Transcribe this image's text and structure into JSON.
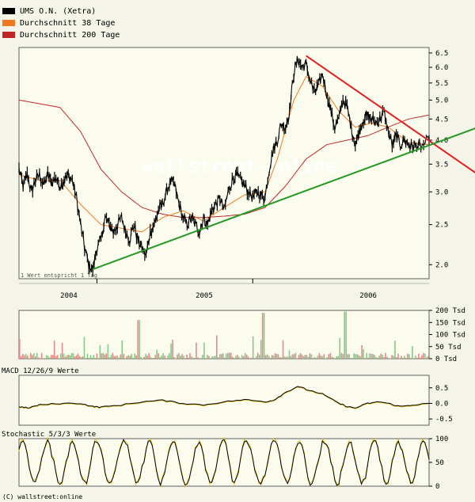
{
  "legend": [
    {
      "label": "UMS O.N. (Xetra)",
      "color": "#000000"
    },
    {
      "label": "Durchschnitt 38 Tage",
      "color": "#f07820"
    },
    {
      "label": "Durchschnitt 200 Tage",
      "color": "#c02828"
    }
  ],
  "footer": "(C) wallstreet:online",
  "watermark": "wallstreet-online",
  "chart_data": [
    {
      "type": "line",
      "name": "price",
      "x_labels": [
        "2004",
        "2005",
        "2006"
      ],
      "y_ticks": [
        6.5,
        6.0,
        5.5,
        5.0,
        4.5,
        4.0,
        3.5,
        3.0,
        2.5,
        2.0
      ],
      "ylim": [
        1.85,
        6.7
      ],
      "scale": "log",
      "note": "1 Wert entspricht 1 Tag",
      "price_path": [
        [
          0,
          3.4
        ],
        [
          0.01,
          3.1
        ],
        [
          0.02,
          3.3
        ],
        [
          0.03,
          3.0
        ],
        [
          0.04,
          3.2
        ],
        [
          0.05,
          3.3
        ],
        [
          0.06,
          3.1
        ],
        [
          0.07,
          3.3
        ],
        [
          0.08,
          3.15
        ],
        [
          0.09,
          3.25
        ],
        [
          0.1,
          3.1
        ],
        [
          0.11,
          3.2
        ],
        [
          0.12,
          3.3
        ],
        [
          0.13,
          3.2
        ],
        [
          0.14,
          2.9
        ],
        [
          0.15,
          2.5
        ],
        [
          0.16,
          2.2
        ],
        [
          0.17,
          2.0
        ],
        [
          0.18,
          1.95
        ],
        [
          0.19,
          2.2
        ],
        [
          0.2,
          2.3
        ],
        [
          0.21,
          2.6
        ],
        [
          0.22,
          2.5
        ],
        [
          0.23,
          2.4
        ],
        [
          0.24,
          2.5
        ],
        [
          0.25,
          2.6
        ],
        [
          0.26,
          2.4
        ],
        [
          0.27,
          2.3
        ],
        [
          0.28,
          2.5
        ],
        [
          0.29,
          2.3
        ],
        [
          0.3,
          2.2
        ],
        [
          0.31,
          2.1
        ],
        [
          0.32,
          2.4
        ],
        [
          0.33,
          2.5
        ],
        [
          0.34,
          2.7
        ],
        [
          0.35,
          2.8
        ],
        [
          0.36,
          3.0
        ],
        [
          0.37,
          3.2
        ],
        [
          0.38,
          3.1
        ],
        [
          0.39,
          2.8
        ],
        [
          0.4,
          2.6
        ],
        [
          0.41,
          2.5
        ],
        [
          0.42,
          2.6
        ],
        [
          0.43,
          2.5
        ],
        [
          0.44,
          2.4
        ],
        [
          0.45,
          2.6
        ],
        [
          0.46,
          2.5
        ],
        [
          0.47,
          2.7
        ],
        [
          0.48,
          2.8
        ],
        [
          0.49,
          2.9
        ],
        [
          0.5,
          2.7
        ],
        [
          0.51,
          3.0
        ],
        [
          0.52,
          3.2
        ],
        [
          0.53,
          3.3
        ],
        [
          0.54,
          3.2
        ],
        [
          0.55,
          3.1
        ],
        [
          0.56,
          3.0
        ],
        [
          0.57,
          2.9
        ],
        [
          0.58,
          3.0
        ],
        [
          0.59,
          2.95
        ],
        [
          0.6,
          2.9
        ],
        [
          0.61,
          3.4
        ],
        [
          0.62,
          3.8
        ],
        [
          0.63,
          4.0
        ],
        [
          0.64,
          4.4
        ],
        [
          0.65,
          4.3
        ],
        [
          0.66,
          4.7
        ],
        [
          0.67,
          5.8
        ],
        [
          0.68,
          6.3
        ],
        [
          0.69,
          6.0
        ],
        [
          0.7,
          6.1
        ],
        [
          0.71,
          5.6
        ],
        [
          0.72,
          5.2
        ],
        [
          0.73,
          5.4
        ],
        [
          0.74,
          5.8
        ],
        [
          0.75,
          5.2
        ],
        [
          0.76,
          4.7
        ],
        [
          0.77,
          4.3
        ],
        [
          0.78,
          4.5
        ],
        [
          0.79,
          5.0
        ],
        [
          0.8,
          4.8
        ],
        [
          0.81,
          4.3
        ],
        [
          0.82,
          3.9
        ],
        [
          0.83,
          4.2
        ],
        [
          0.84,
          4.5
        ],
        [
          0.85,
          4.6
        ],
        [
          0.86,
          4.5
        ],
        [
          0.87,
          4.4
        ],
        [
          0.88,
          4.5
        ],
        [
          0.89,
          4.7
        ],
        [
          0.9,
          4.2
        ],
        [
          0.91,
          3.9
        ],
        [
          0.92,
          4.1
        ],
        [
          0.93,
          3.9
        ],
        [
          0.94,
          4.0
        ],
        [
          0.95,
          3.9
        ],
        [
          0.96,
          3.85
        ],
        [
          0.97,
          3.9
        ],
        [
          0.98,
          3.85
        ],
        [
          1.0,
          4.0
        ]
      ],
      "ma38_path": [
        [
          0,
          3.3
        ],
        [
          0.05,
          3.2
        ],
        [
          0.1,
          3.2
        ],
        [
          0.15,
          2.8
        ],
        [
          0.2,
          2.5
        ],
        [
          0.25,
          2.45
        ],
        [
          0.3,
          2.4
        ],
        [
          0.35,
          2.6
        ],
        [
          0.4,
          2.7
        ],
        [
          0.45,
          2.55
        ],
        [
          0.5,
          2.75
        ],
        [
          0.55,
          2.95
        ],
        [
          0.6,
          3.0
        ],
        [
          0.63,
          3.6
        ],
        [
          0.67,
          5.0
        ],
        [
          0.7,
          5.7
        ],
        [
          0.74,
          5.4
        ],
        [
          0.78,
          4.7
        ],
        [
          0.82,
          4.3
        ],
        [
          0.86,
          4.4
        ],
        [
          0.9,
          4.3
        ],
        [
          0.95,
          3.95
        ],
        [
          1.0,
          3.9
        ]
      ],
      "ma200_path": [
        [
          0,
          5.0
        ],
        [
          0.05,
          4.9
        ],
        [
          0.1,
          4.8
        ],
        [
          0.15,
          4.2
        ],
        [
          0.2,
          3.4
        ],
        [
          0.25,
          3.0
        ],
        [
          0.3,
          2.75
        ],
        [
          0.35,
          2.65
        ],
        [
          0.4,
          2.6
        ],
        [
          0.45,
          2.6
        ],
        [
          0.5,
          2.62
        ],
        [
          0.55,
          2.65
        ],
        [
          0.6,
          2.75
        ],
        [
          0.65,
          3.1
        ],
        [
          0.7,
          3.6
        ],
        [
          0.75,
          3.9
        ],
        [
          0.8,
          4.0
        ],
        [
          0.85,
          4.1
        ],
        [
          0.9,
          4.3
        ],
        [
          0.95,
          4.5
        ],
        [
          1.0,
          4.6
        ]
      ],
      "trend_lines": [
        {
          "color": "#e02020",
          "from": [
            0.7,
            6.4
          ],
          "to": [
            1.12,
            3.3
          ]
        },
        {
          "color": "#229922",
          "from": [
            0.18,
            1.95
          ],
          "to": [
            1.12,
            4.3
          ]
        }
      ]
    },
    {
      "type": "bar",
      "name": "volume",
      "y_ticks_labels": [
        "200 Tsd",
        "150 Tsd",
        "100 Tsd",
        "50 Tsd",
        "0 Tsd"
      ],
      "y_ticks": [
        200,
        150,
        100,
        50,
        0
      ],
      "ylim": [
        0,
        200
      ]
    },
    {
      "type": "line",
      "name": "MACD",
      "title": "MACD 12/26/9 Werte",
      "y_ticks_labels": [
        "0.5",
        "0.0",
        "-0.5"
      ],
      "y_ticks": [
        0.5,
        0.0,
        -0.5
      ],
      "ylim": [
        -0.7,
        0.9
      ],
      "macd_path": [
        [
          0,
          -0.1
        ],
        [
          0.02,
          -0.15
        ],
        [
          0.05,
          -0.05
        ],
        [
          0.1,
          0.0
        ],
        [
          0.15,
          0.0
        ],
        [
          0.18,
          -0.1
        ],
        [
          0.2,
          -0.12
        ],
        [
          0.25,
          -0.05
        ],
        [
          0.3,
          0.05
        ],
        [
          0.35,
          0.1
        ],
        [
          0.4,
          0.0
        ],
        [
          0.45,
          -0.05
        ],
        [
          0.5,
          0.05
        ],
        [
          0.55,
          0.12
        ],
        [
          0.6,
          0.05
        ],
        [
          0.62,
          0.1
        ],
        [
          0.65,
          0.35
        ],
        [
          0.68,
          0.55
        ],
        [
          0.7,
          0.45
        ],
        [
          0.74,
          0.3
        ],
        [
          0.78,
          0.0
        ],
        [
          0.8,
          -0.1
        ],
        [
          0.82,
          -0.15
        ],
        [
          0.85,
          0.0
        ],
        [
          0.88,
          0.05
        ],
        [
          0.9,
          0.0
        ],
        [
          0.93,
          -0.1
        ],
        [
          0.96,
          -0.05
        ],
        [
          1.0,
          0.0
        ]
      ]
    },
    {
      "type": "line",
      "name": "Stochastic",
      "title": "Stochastic 5/3/3 Werte",
      "y_ticks_labels": [
        "100",
        "50",
        "0"
      ],
      "y_ticks": [
        100,
        50,
        0
      ],
      "ylim": [
        0,
        100
      ]
    }
  ]
}
